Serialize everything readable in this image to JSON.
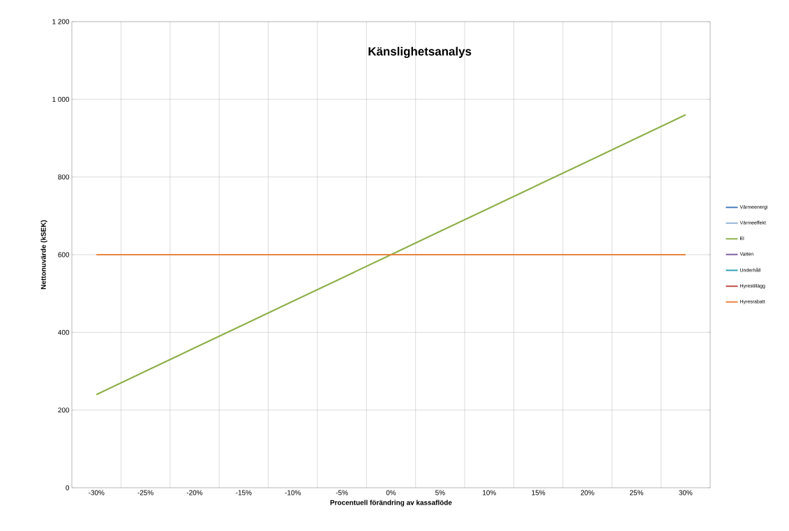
{
  "chart_data": {
    "type": "line",
    "title": "Känslighetsanalys",
    "xlabel": "Procentuell förändring av kassaflöde",
    "ylabel": "Nettonuvärde (kSEK)",
    "categories": [
      "-30%",
      "-25%",
      "-20%",
      "-15%",
      "-10%",
      "-5%",
      "0%",
      "5%",
      "10%",
      "15%",
      "20%",
      "25%",
      "30%"
    ],
    "series": [
      {
        "name": "Värmeenergi",
        "color": "#4a7ebb",
        "values": [
          null,
          null,
          null,
          null,
          null,
          null,
          null,
          null,
          null,
          null,
          null,
          null,
          null
        ]
      },
      {
        "name": "Värmeeffekt",
        "color": "#95b3d7",
        "values": [
          null,
          null,
          null,
          null,
          null,
          null,
          null,
          null,
          null,
          null,
          null,
          null,
          null
        ]
      },
      {
        "name": "El",
        "color": "#8eb04a",
        "values": [
          240,
          300,
          360,
          420,
          480,
          540,
          600,
          660,
          720,
          780,
          840,
          900,
          960
        ]
      },
      {
        "name": "Vatten",
        "color": "#7f5fa0",
        "values": [
          null,
          null,
          null,
          null,
          null,
          null,
          null,
          null,
          null,
          null,
          null,
          null,
          null
        ]
      },
      {
        "name": "Underhåll",
        "color": "#31a0b8",
        "values": [
          null,
          null,
          null,
          null,
          null,
          null,
          null,
          null,
          null,
          null,
          null,
          null,
          null
        ]
      },
      {
        "name": "Hyrestillägg",
        "color": "#be4b48",
        "values": [
          null,
          null,
          null,
          null,
          null,
          null,
          null,
          null,
          null,
          null,
          null,
          null,
          null
        ]
      },
      {
        "name": "Hyresrabatt",
        "color": "#e6843c",
        "values": [
          600,
          600,
          600,
          600,
          600,
          600,
          600,
          600,
          600,
          600,
          600,
          600,
          600
        ]
      }
    ],
    "ylim": [
      0,
      1200
    ],
    "yticks": [
      0,
      200,
      400,
      600,
      800,
      {
        "value": 1000,
        "label": "1 000"
      },
      {
        "value": 1200,
        "label": "1 200"
      }
    ],
    "grid": true,
    "legend": "right",
    "marker": "none",
    "line_style": "solid"
  }
}
